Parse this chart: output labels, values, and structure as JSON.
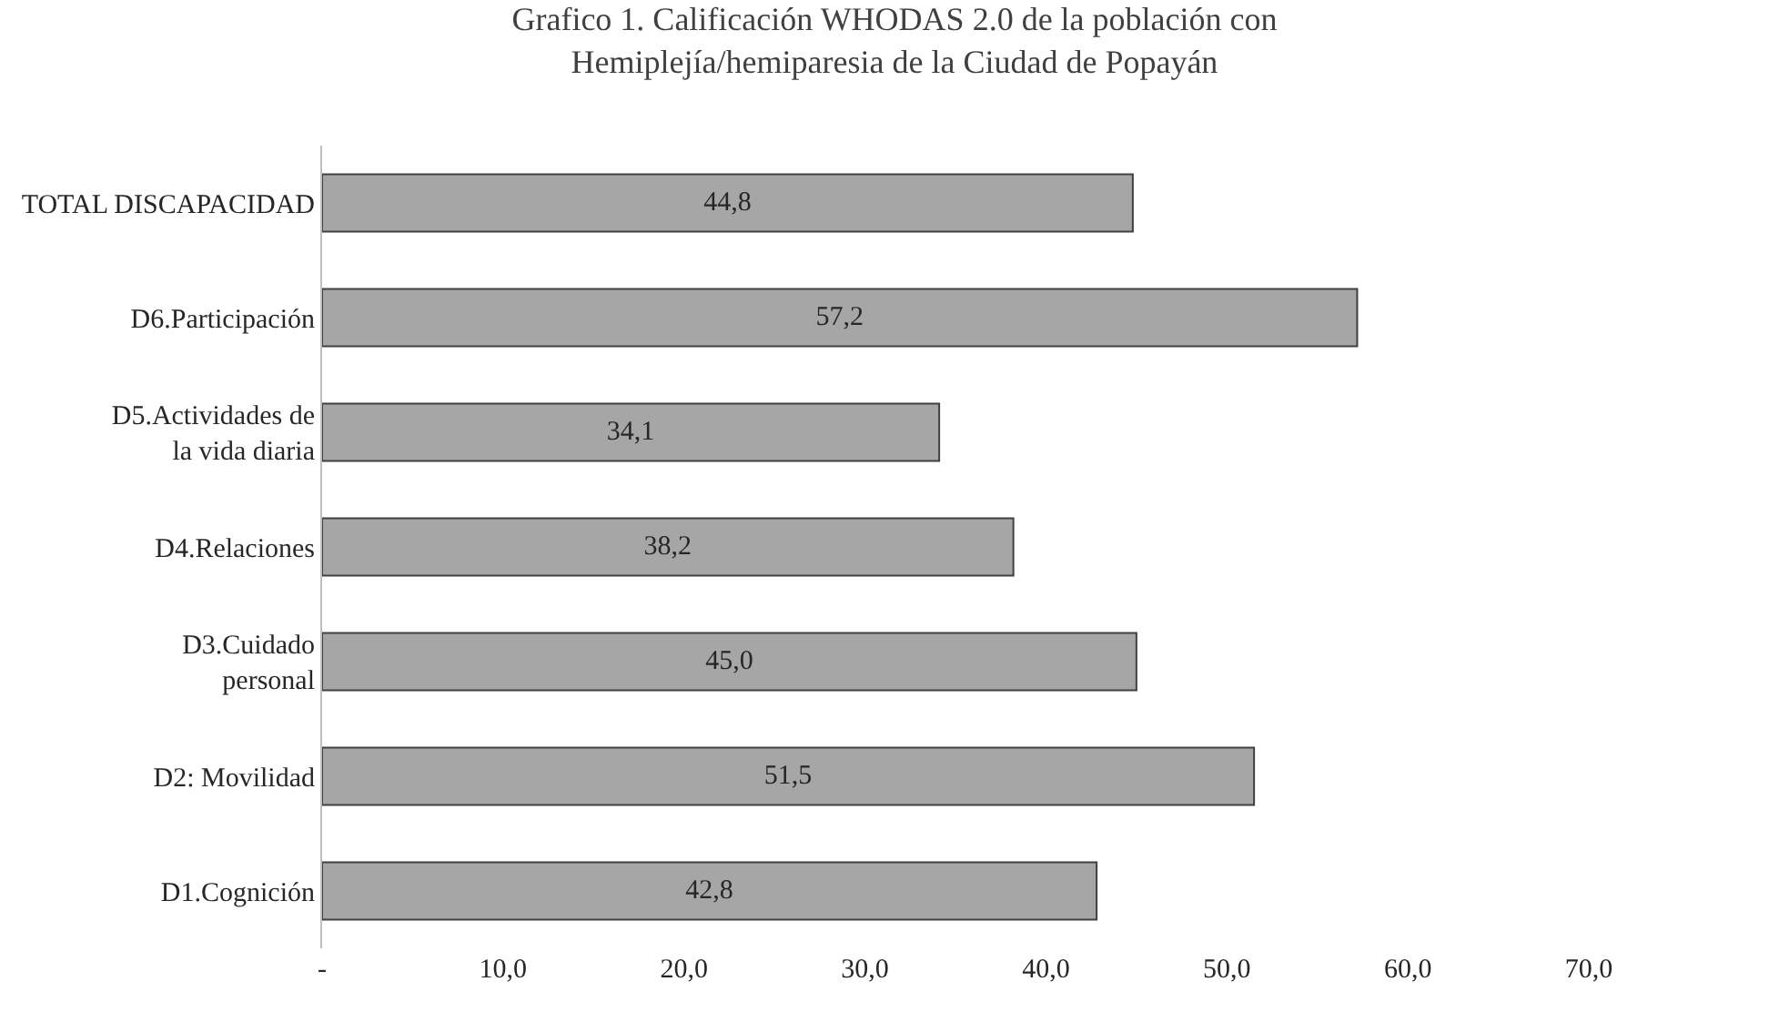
{
  "chart_data": {
    "type": "bar",
    "orientation": "horizontal",
    "title": "Grafico 1. Calificación WHODAS 2.0 de la población con Hemiplejía/hemiparesia de la Ciudad de Popayán",
    "categories": [
      "TOTAL DISCAPACIDAD",
      "D6.Participación",
      "D5.Actividades de la vida diaria",
      "D4.Relaciones",
      "D3.Cuidado personal",
      "D2: Movilidad",
      "D1.Cognición"
    ],
    "values": [
      44.8,
      57.2,
      34.1,
      38.2,
      45.0,
      51.5,
      42.8
    ],
    "value_labels": [
      "44,8",
      "57,2",
      "34,1",
      "38,2",
      "45,0",
      "51,5",
      "42,8"
    ],
    "color": "#a6a6a6",
    "xlim": [
      0,
      70
    ],
    "xticks": [
      {
        "value": 0,
        "label": "-"
      },
      {
        "value": 10,
        "label": "10,0"
      },
      {
        "value": 20,
        "label": "20,0"
      },
      {
        "value": 30,
        "label": "30,0"
      },
      {
        "value": 40,
        "label": "40,0"
      },
      {
        "value": 50,
        "label": "50,0"
      },
      {
        "value": 60,
        "label": "60,0"
      },
      {
        "value": 70,
        "label": "70,0"
      }
    ],
    "legend": false
  }
}
